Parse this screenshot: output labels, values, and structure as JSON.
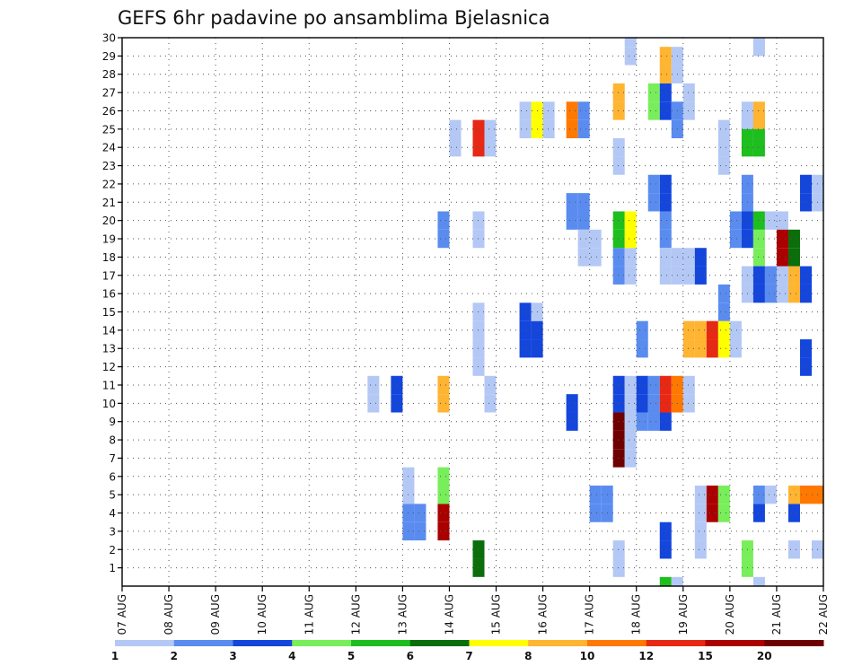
{
  "chart_data": {
    "type": "heatmap",
    "title": "GEFS 6hr padavine po ansamblima Bjelasnica",
    "xlabel": "",
    "ylabel": "",
    "x_tick_labels": [
      "07 AUG",
      "08 AUG",
      "09 AUG",
      "10 AUG",
      "11 AUG",
      "12 AUG",
      "13 AUG",
      "14 AUG",
      "15 AUG",
      "16 AUG",
      "17 AUG",
      "18 AUG",
      "19 AUG",
      "20 AUG",
      "21 AUG",
      "22 AUG"
    ],
    "y_tick_labels": [
      "1",
      "2",
      "3",
      "4",
      "5",
      "6",
      "7",
      "8",
      "9",
      "10",
      "11",
      "12",
      "13",
      "14",
      "15",
      "16",
      "17",
      "18",
      "19",
      "20",
      "21",
      "22",
      "23",
      "24",
      "25",
      "26",
      "27",
      "28",
      "29",
      "30"
    ],
    "xlim": [
      0,
      15
    ],
    "ylim": [
      0,
      30
    ],
    "grid": true,
    "colorbar": {
      "labels": [
        "1",
        "2",
        "3",
        "4",
        "5",
        "6",
        "7",
        "8",
        "10",
        "12",
        "15",
        "20"
      ],
      "colors": [
        "#b4c8f5",
        "#5a8cf0",
        "#1446dc",
        "#78ee5a",
        "#1ebe1e",
        "#0a6e0a",
        "#ffff00",
        "#ffb432",
        "#ff7800",
        "#e62814",
        "#aa0000",
        "#6e0000"
      ]
    },
    "cells": [
      {
        "x": 5.25,
        "m": 10,
        "c": 0
      },
      {
        "x": 5.25,
        "m": 11,
        "c": 0
      },
      {
        "x": 5.75,
        "m": 10,
        "c": 2
      },
      {
        "x": 5.75,
        "m": 11,
        "c": 2
      },
      {
        "x": 6.0,
        "m": 3,
        "c": 1
      },
      {
        "x": 6.0,
        "m": 4,
        "c": 1
      },
      {
        "x": 6.25,
        "m": 3,
        "c": 1
      },
      {
        "x": 6.25,
        "m": 4,
        "c": 1
      },
      {
        "x": 6.0,
        "m": 5,
        "c": 0
      },
      {
        "x": 6.0,
        "m": 6,
        "c": 0
      },
      {
        "x": 6.75,
        "m": 3,
        "c": 10
      },
      {
        "x": 6.75,
        "m": 4,
        "c": 10
      },
      {
        "x": 6.75,
        "m": 5,
        "c": 3
      },
      {
        "x": 6.75,
        "m": 6,
        "c": 3
      },
      {
        "x": 6.75,
        "m": 10,
        "c": 7
      },
      {
        "x": 6.75,
        "m": 11,
        "c": 7
      },
      {
        "x": 6.75,
        "m": 19,
        "c": 1
      },
      {
        "x": 6.75,
        "m": 20,
        "c": 1
      },
      {
        "x": 7.0,
        "m": 24,
        "c": 0
      },
      {
        "x": 7.0,
        "m": 25,
        "c": 0
      },
      {
        "x": 7.5,
        "m": 1,
        "c": 5
      },
      {
        "x": 7.5,
        "m": 2,
        "c": 5
      },
      {
        "x": 7.5,
        "m": 12,
        "c": 0
      },
      {
        "x": 7.5,
        "m": 13,
        "c": 0
      },
      {
        "x": 7.5,
        "m": 14,
        "c": 0
      },
      {
        "x": 7.5,
        "m": 15,
        "c": 0
      },
      {
        "x": 7.5,
        "m": 19,
        "c": 0
      },
      {
        "x": 7.5,
        "m": 20,
        "c": 0
      },
      {
        "x": 7.5,
        "m": 24,
        "c": 9
      },
      {
        "x": 7.5,
        "m": 25,
        "c": 9
      },
      {
        "x": 7.75,
        "m": 24,
        "c": 0
      },
      {
        "x": 7.75,
        "m": 25,
        "c": 0
      },
      {
        "x": 7.75,
        "m": 10,
        "c": 0
      },
      {
        "x": 7.75,
        "m": 11,
        "c": 0
      },
      {
        "x": 8.5,
        "m": 13,
        "c": 2
      },
      {
        "x": 8.5,
        "m": 14,
        "c": 2
      },
      {
        "x": 8.5,
        "m": 15,
        "c": 2
      },
      {
        "x": 8.75,
        "m": 13,
        "c": 2
      },
      {
        "x": 8.75,
        "m": 14,
        "c": 2
      },
      {
        "x": 8.75,
        "m": 15,
        "c": 0
      },
      {
        "x": 8.5,
        "m": 25,
        "c": 0
      },
      {
        "x": 8.5,
        "m": 26,
        "c": 0
      },
      {
        "x": 8.75,
        "m": 25,
        "c": 6
      },
      {
        "x": 8.75,
        "m": 26,
        "c": 6
      },
      {
        "x": 9.0,
        "m": 25,
        "c": 0
      },
      {
        "x": 9.0,
        "m": 26,
        "c": 0
      },
      {
        "x": 9.5,
        "m": 25,
        "c": 8
      },
      {
        "x": 9.5,
        "m": 26,
        "c": 8
      },
      {
        "x": 9.75,
        "m": 25,
        "c": 1
      },
      {
        "x": 9.75,
        "m": 26,
        "c": 1
      },
      {
        "x": 9.5,
        "m": 20,
        "c": 1
      },
      {
        "x": 9.5,
        "m": 21,
        "c": 1
      },
      {
        "x": 9.75,
        "m": 20,
        "c": 1
      },
      {
        "x": 9.75,
        "m": 21,
        "c": 1
      },
      {
        "x": 9.5,
        "m": 9,
        "c": 2
      },
      {
        "x": 9.5,
        "m": 10,
        "c": 2
      },
      {
        "x": 9.75,
        "m": 18,
        "c": 0
      },
      {
        "x": 9.75,
        "m": 19,
        "c": 0
      },
      {
        "x": 10.0,
        "m": 18,
        "c": 0
      },
      {
        "x": 10.0,
        "m": 19,
        "c": 0
      },
      {
        "x": 10.0,
        "m": 4,
        "c": 1
      },
      {
        "x": 10.0,
        "m": 5,
        "c": 1
      },
      {
        "x": 10.25,
        "m": 4,
        "c": 1
      },
      {
        "x": 10.25,
        "m": 5,
        "c": 1
      },
      {
        "x": 10.5,
        "m": 1,
        "c": 0
      },
      {
        "x": 10.5,
        "m": 2,
        "c": 0
      },
      {
        "x": 10.5,
        "m": 7,
        "c": 11
      },
      {
        "x": 10.5,
        "m": 8,
        "c": 11
      },
      {
        "x": 10.75,
        "m": 7,
        "c": 0
      },
      {
        "x": 10.75,
        "m": 8,
        "c": 0
      },
      {
        "x": 10.5,
        "m": 9,
        "c": 11
      },
      {
        "x": 10.5,
        "m": 10,
        "c": 2
      },
      {
        "x": 10.5,
        "m": 11,
        "c": 2
      },
      {
        "x": 10.75,
        "m": 9,
        "c": 0
      },
      {
        "x": 10.75,
        "m": 10,
        "c": 0
      },
      {
        "x": 10.75,
        "m": 11,
        "c": 0
      },
      {
        "x": 11.0,
        "m": 9,
        "c": 1
      },
      {
        "x": 11.0,
        "m": 10,
        "c": 2
      },
      {
        "x": 11.0,
        "m": 11,
        "c": 2
      },
      {
        "x": 11.25,
        "m": 9,
        "c": 1
      },
      {
        "x": 11.25,
        "m": 10,
        "c": 1
      },
      {
        "x": 11.25,
        "m": 11,
        "c": 1
      },
      {
        "x": 11.5,
        "m": 9,
        "c": 2
      },
      {
        "x": 11.5,
        "m": 10,
        "c": 9
      },
      {
        "x": 11.5,
        "m": 11,
        "c": 9
      },
      {
        "x": 11.75,
        "m": 10,
        "c": 8
      },
      {
        "x": 11.75,
        "m": 11,
        "c": 8
      },
      {
        "x": 12.0,
        "m": 10,
        "c": 0
      },
      {
        "x": 12.0,
        "m": 11,
        "c": 0
      },
      {
        "x": 10.5,
        "m": 17,
        "c": 1
      },
      {
        "x": 10.5,
        "m": 18,
        "c": 1
      },
      {
        "x": 10.75,
        "m": 17,
        "c": 0
      },
      {
        "x": 10.75,
        "m": 18,
        "c": 0
      },
      {
        "x": 10.5,
        "m": 19,
        "c": 4
      },
      {
        "x": 10.5,
        "m": 20,
        "c": 4
      },
      {
        "x": 10.75,
        "m": 19,
        "c": 6
      },
      {
        "x": 10.75,
        "m": 20,
        "c": 6
      },
      {
        "x": 10.5,
        "m": 23,
        "c": 0
      },
      {
        "x": 10.5,
        "m": 24,
        "c": 0
      },
      {
        "x": 10.5,
        "m": 26,
        "c": 7
      },
      {
        "x": 10.5,
        "m": 27,
        "c": 7
      },
      {
        "x": 10.75,
        "m": 29,
        "c": 0
      },
      {
        "x": 10.75,
        "m": 30,
        "c": 0
      },
      {
        "x": 11.0,
        "m": 13,
        "c": 1
      },
      {
        "x": 11.0,
        "m": 14,
        "c": 1
      },
      {
        "x": 11.25,
        "m": 26,
        "c": 3
      },
      {
        "x": 11.25,
        "m": 27,
        "c": 3
      },
      {
        "x": 11.5,
        "m": 26,
        "c": 2
      },
      {
        "x": 11.5,
        "m": 27,
        "c": 2
      },
      {
        "x": 11.5,
        "m": 28,
        "c": 7
      },
      {
        "x": 11.5,
        "m": 29,
        "c": 7
      },
      {
        "x": 11.75,
        "m": 28,
        "c": 0
      },
      {
        "x": 11.75,
        "m": 29,
        "c": 0
      },
      {
        "x": 11.5,
        "m": 21,
        "c": 2
      },
      {
        "x": 11.5,
        "m": 22,
        "c": 2
      },
      {
        "x": 11.25,
        "m": 21,
        "c": 1
      },
      {
        "x": 11.25,
        "m": 22,
        "c": 1
      },
      {
        "x": 11.5,
        "m": 19,
        "c": 1
      },
      {
        "x": 11.5,
        "m": 20,
        "c": 1
      },
      {
        "x": 11.5,
        "m": 2,
        "c": 2
      },
      {
        "x": 11.5,
        "m": 3,
        "c": 2
      },
      {
        "x": 11.5,
        "m": 0,
        "c": 4
      },
      {
        "x": 11.75,
        "m": 0,
        "c": 0
      },
      {
        "x": 11.75,
        "m": 25,
        "c": 1
      },
      {
        "x": 11.75,
        "m": 26,
        "c": 1
      },
      {
        "x": 12.0,
        "m": 26,
        "c": 0
      },
      {
        "x": 12.0,
        "m": 27,
        "c": 0
      },
      {
        "x": 11.5,
        "m": 17,
        "c": 0
      },
      {
        "x": 11.5,
        "m": 18,
        "c": 0
      },
      {
        "x": 11.75,
        "m": 17,
        "c": 0
      },
      {
        "x": 11.75,
        "m": 18,
        "c": 0
      },
      {
        "x": 12.0,
        "m": 17,
        "c": 0
      },
      {
        "x": 12.0,
        "m": 18,
        "c": 0
      },
      {
        "x": 12.25,
        "m": 17,
        "c": 2
      },
      {
        "x": 12.25,
        "m": 18,
        "c": 2
      },
      {
        "x": 12.0,
        "m": 13,
        "c": 7
      },
      {
        "x": 12.0,
        "m": 14,
        "c": 7
      },
      {
        "x": 12.25,
        "m": 13,
        "c": 7
      },
      {
        "x": 12.25,
        "m": 14,
        "c": 7
      },
      {
        "x": 12.5,
        "m": 13,
        "c": 9
      },
      {
        "x": 12.5,
        "m": 14,
        "c": 9
      },
      {
        "x": 12.75,
        "m": 13,
        "c": 6
      },
      {
        "x": 12.75,
        "m": 14,
        "c": 6
      },
      {
        "x": 13.0,
        "m": 13,
        "c": 0
      },
      {
        "x": 13.0,
        "m": 14,
        "c": 0
      },
      {
        "x": 12.25,
        "m": 4,
        "c": 0
      },
      {
        "x": 12.25,
        "m": 5,
        "c": 0
      },
      {
        "x": 12.5,
        "m": 4,
        "c": 10
      },
      {
        "x": 12.5,
        "m": 5,
        "c": 10
      },
      {
        "x": 12.75,
        "m": 4,
        "c": 3
      },
      {
        "x": 12.75,
        "m": 5,
        "c": 3
      },
      {
        "x": 12.25,
        "m": 2,
        "c": 0
      },
      {
        "x": 12.25,
        "m": 3,
        "c": 0
      },
      {
        "x": 12.75,
        "m": 15,
        "c": 1
      },
      {
        "x": 12.75,
        "m": 16,
        "c": 1
      },
      {
        "x": 12.75,
        "m": 23,
        "c": 0
      },
      {
        "x": 12.75,
        "m": 24,
        "c": 0
      },
      {
        "x": 12.75,
        "m": 25,
        "c": 0
      },
      {
        "x": 13.0,
        "m": 19,
        "c": 1
      },
      {
        "x": 13.0,
        "m": 20,
        "c": 1
      },
      {
        "x": 13.25,
        "m": 19,
        "c": 2
      },
      {
        "x": 13.25,
        "m": 20,
        "c": 2
      },
      {
        "x": 13.5,
        "m": 18,
        "c": 3
      },
      {
        "x": 13.5,
        "m": 19,
        "c": 3
      },
      {
        "x": 13.5,
        "m": 20,
        "c": 4
      },
      {
        "x": 13.75,
        "m": 20,
        "c": 0
      },
      {
        "x": 14.0,
        "m": 20,
        "c": 0
      },
      {
        "x": 13.25,
        "m": 16,
        "c": 0
      },
      {
        "x": 13.25,
        "m": 17,
        "c": 0
      },
      {
        "x": 13.5,
        "m": 16,
        "c": 2
      },
      {
        "x": 13.5,
        "m": 17,
        "c": 2
      },
      {
        "x": 13.75,
        "m": 16,
        "c": 1
      },
      {
        "x": 13.75,
        "m": 17,
        "c": 1
      },
      {
        "x": 14.0,
        "m": 16,
        "c": 0
      },
      {
        "x": 14.0,
        "m": 17,
        "c": 0
      },
      {
        "x": 14.25,
        "m": 16,
        "c": 7
      },
      {
        "x": 14.25,
        "m": 17,
        "c": 7
      },
      {
        "x": 14.5,
        "m": 16,
        "c": 2
      },
      {
        "x": 14.5,
        "m": 17,
        "c": 2
      },
      {
        "x": 14.0,
        "m": 18,
        "c": 10
      },
      {
        "x": 14.0,
        "m": 19,
        "c": 10
      },
      {
        "x": 14.25,
        "m": 18,
        "c": 5
      },
      {
        "x": 14.25,
        "m": 19,
        "c": 5
      },
      {
        "x": 13.25,
        "m": 21,
        "c": 1
      },
      {
        "x": 13.25,
        "m": 22,
        "c": 1
      },
      {
        "x": 14.5,
        "m": 21,
        "c": 2
      },
      {
        "x": 14.5,
        "m": 22,
        "c": 2
      },
      {
        "x": 14.75,
        "m": 21,
        "c": 0
      },
      {
        "x": 14.75,
        "m": 22,
        "c": 0
      },
      {
        "x": 13.25,
        "m": 24,
        "c": 4
      },
      {
        "x": 13.25,
        "m": 25,
        "c": 4
      },
      {
        "x": 13.5,
        "m": 24,
        "c": 4
      },
      {
        "x": 13.5,
        "m": 25,
        "c": 4
      },
      {
        "x": 13.25,
        "m": 25.5,
        "c": 0
      },
      {
        "x": 13.25,
        "m": 26,
        "c": 0
      },
      {
        "x": 13.5,
        "m": 25.5,
        "c": 7
      },
      {
        "x": 13.5,
        "m": 26,
        "c": 7
      },
      {
        "x": 13.5,
        "m": 29.5,
        "c": 0
      },
      {
        "x": 13.5,
        "m": 30,
        "c": 0
      },
      {
        "x": 13.5,
        "m": 4,
        "c": 2
      },
      {
        "x": 13.5,
        "m": 5,
        "c": 1
      },
      {
        "x": 13.75,
        "m": 5,
        "c": 0
      },
      {
        "x": 14.25,
        "m": 4,
        "c": 2
      },
      {
        "x": 14.25,
        "m": 5,
        "c": 7
      },
      {
        "x": 14.5,
        "m": 5,
        "c": 8
      },
      {
        "x": 14.75,
        "m": 5,
        "c": 8
      },
      {
        "x": 14.25,
        "m": 2,
        "c": 0
      },
      {
        "x": 14.75,
        "m": 2,
        "c": 0
      },
      {
        "x": 13.25,
        "m": 1,
        "c": 3
      },
      {
        "x": 13.25,
        "m": 2,
        "c": 3
      },
      {
        "x": 13.5,
        "m": 0,
        "c": 0
      },
      {
        "x": 14.5,
        "m": 12,
        "c": 2
      },
      {
        "x": 14.5,
        "m": 13,
        "c": 2
      }
    ]
  }
}
